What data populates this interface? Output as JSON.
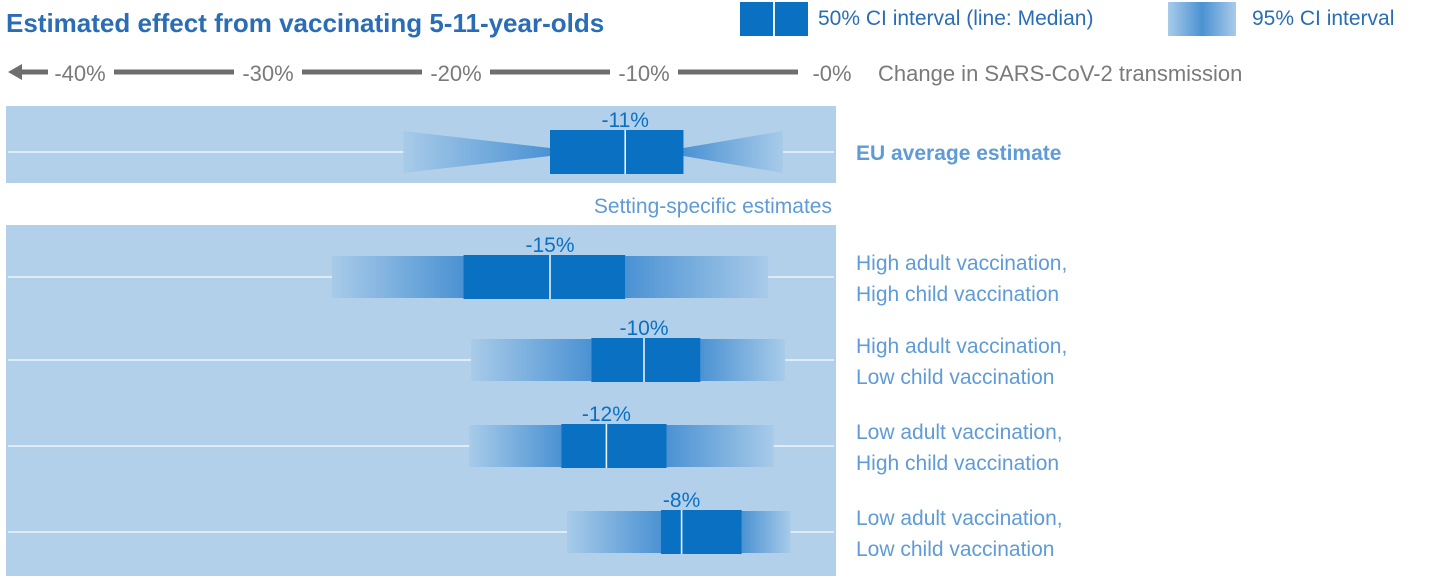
{
  "chart_data": {
    "type": "bar",
    "title": "Estimated effect from vaccinating 5-11-year-olds",
    "legend": {
      "placement": "top-right",
      "ci50_label": "50% CI interval (line: Median)",
      "ci95_label": "95% CI interval"
    },
    "axis": {
      "label": "Change in SARS-CoV-2 transmission",
      "ticks": [
        "-40%",
        "-30%",
        "-20%",
        "-10%",
        "-0%"
      ],
      "tick_values": [
        -40,
        -30,
        -20,
        -10,
        0
      ],
      "range": [
        -44,
        0
      ]
    },
    "section_label": "Setting-specific estimates",
    "series": [
      {
        "name": "EU average estimate",
        "label_lines": [
          "EU average estimate"
        ],
        "median": -11,
        "median_label": "-11%",
        "ci50": [
          -15,
          -7.9
        ],
        "ci95": [
          -22.8,
          -2.6
        ],
        "bold": true
      },
      {
        "name": "High adult vaccination, High child vaccination",
        "label_lines": [
          "High adult vaccination,",
          "High child vaccination"
        ],
        "median": -15,
        "median_label": "-15%",
        "ci50": [
          -19.6,
          -11.0
        ],
        "ci95": [
          -26.6,
          -3.4
        ]
      },
      {
        "name": "High adult vaccination, Low child vaccination",
        "label_lines": [
          "High adult vaccination,",
          "Low child vaccination"
        ],
        "median": -10,
        "median_label": "-10%",
        "ci50": [
          -12.8,
          -7.0
        ],
        "ci95": [
          -19.2,
          -2.5
        ]
      },
      {
        "name": "Low adult vaccination, High child vaccination",
        "label_lines": [
          "Low adult vaccination,",
          "High child vaccination"
        ],
        "median": -12,
        "median_label": "-12%",
        "ci50": [
          -14.4,
          -8.8
        ],
        "ci95": [
          -19.3,
          -3.1
        ]
      },
      {
        "name": "Low adult vaccination, Low child vaccination",
        "label_lines": [
          "Low adult vaccination,",
          "Low child vaccination"
        ],
        "median": -8,
        "median_label": "-8%",
        "ci50": [
          -9.1,
          -4.8
        ],
        "ci95": [
          -14.1,
          -2.2
        ]
      }
    ],
    "colors": {
      "title": "#2a6db5",
      "axis_text": "#7a7a7a",
      "axis_line": "#6e6e6e",
      "panel": "#b3d0eb",
      "ci50": "#0a70c1",
      "ci95_edge": "#a8cbe9",
      "ci95_mid": "#4b92d3",
      "median_line": "#e8f1fa",
      "label": "#5f9bd6"
    }
  }
}
